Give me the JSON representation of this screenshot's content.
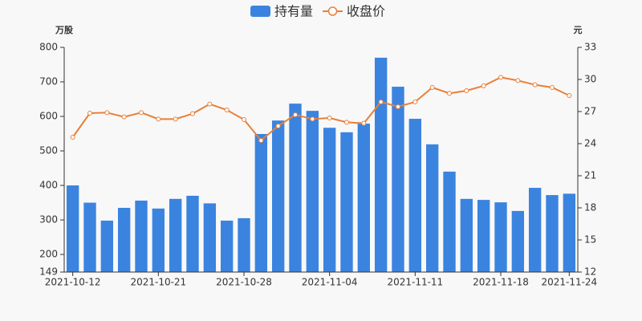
{
  "chart_data": {
    "type": "bar-line",
    "categories": [
      "2021-10-12",
      null,
      null,
      null,
      null,
      "2021-10-21",
      null,
      null,
      null,
      null,
      "2021-10-28",
      null,
      null,
      null,
      null,
      "2021-11-04",
      null,
      null,
      null,
      null,
      "2021-11-11",
      null,
      null,
      null,
      null,
      "2021-11-18",
      null,
      null,
      null,
      "2021-11-24"
    ],
    "y_label": "万股",
    "y2_label": "元",
    "series": [
      {
        "name": "持有量",
        "type": "bar",
        "color": "#3a84e0",
        "values": [
          400,
          350,
          298,
          335,
          356,
          333,
          361,
          370,
          348,
          298,
          305,
          549,
          588,
          637,
          616,
          567,
          554,
          579,
          770,
          686,
          593,
          519,
          440,
          361,
          358,
          351,
          326,
          393,
          372,
          376
        ]
      },
      {
        "name": "收盘价",
        "type": "line",
        "axis": "y2",
        "color": "#e8803a",
        "values": [
          24.6,
          26.85,
          26.9,
          26.5,
          26.9,
          26.3,
          26.3,
          26.8,
          27.7,
          27.15,
          26.25,
          24.3,
          25.65,
          26.7,
          26.3,
          26.4,
          26.0,
          25.9,
          27.9,
          27.45,
          27.9,
          29.25,
          28.7,
          28.95,
          29.4,
          30.2,
          29.9,
          29.5,
          29.25,
          28.5
        ]
      }
    ],
    "ylim": [
      149,
      800
    ],
    "yticks": [
      149,
      200,
      300,
      400,
      500,
      600,
      700,
      800
    ],
    "y2lim": [
      12,
      33
    ],
    "y2ticks": [
      12,
      15,
      18,
      21,
      24,
      27,
      30,
      33
    ]
  }
}
